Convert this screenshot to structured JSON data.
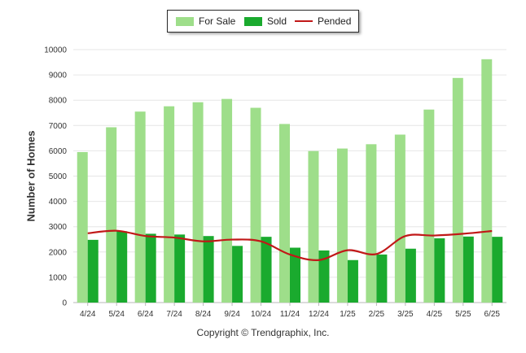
{
  "chart_data": {
    "type": "bar",
    "categories": [
      "4/24",
      "5/24",
      "6/24",
      "7/24",
      "8/24",
      "9/24",
      "10/24",
      "11/24",
      "12/24",
      "1/25",
      "2/25",
      "3/25",
      "4/25",
      "5/25",
      "6/25"
    ],
    "series": [
      {
        "name": "For Sale",
        "type": "bar",
        "color": "#9ede8a",
        "values": [
          5950,
          6930,
          7550,
          7760,
          7920,
          8050,
          7700,
          7060,
          5990,
          6090,
          6260,
          6640,
          7630,
          8880,
          9620
        ]
      },
      {
        "name": "Sold",
        "type": "bar",
        "color": "#1aaa2e",
        "values": [
          2480,
          2820,
          2720,
          2690,
          2630,
          2240,
          2600,
          2170,
          2060,
          1680,
          1900,
          2130,
          2540,
          2610,
          2600
        ]
      },
      {
        "name": "Pended",
        "type": "line",
        "color": "#c11818",
        "values": [
          2740,
          2840,
          2630,
          2570,
          2420,
          2490,
          2420,
          1900,
          1680,
          2070,
          1920,
          2630,
          2650,
          2720,
          2830
        ]
      }
    ],
    "ylabel": "Number of Homes",
    "ylim": [
      0,
      10000
    ],
    "yticks": [
      0,
      1000,
      2000,
      3000,
      4000,
      5000,
      6000,
      7000,
      8000,
      9000,
      10000
    ],
    "grid": true,
    "legend_position": "top-center"
  },
  "footer": "Copyright © Trendgraphix, Inc."
}
